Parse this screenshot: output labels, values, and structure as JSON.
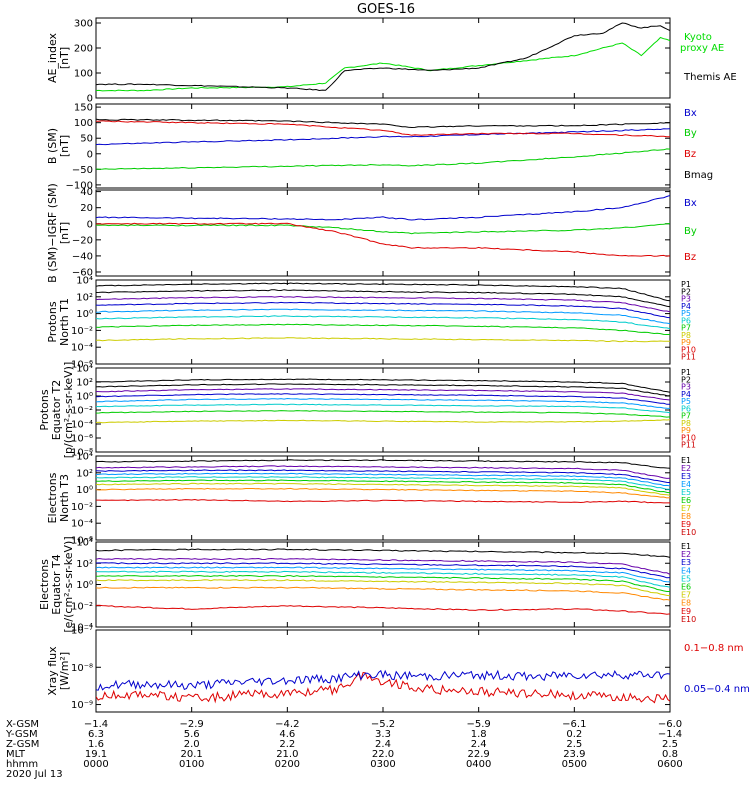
{
  "title": "GOES-16",
  "chart_data": [
    {
      "id": "ae",
      "type": "line",
      "ylabel": [
        "AE_index",
        "[nT]"
      ],
      "ylim": [
        0,
        320
      ],
      "yticks": [
        0,
        100,
        200,
        300
      ],
      "ytick_labels": [
        "0",
        "100",
        "200",
        "300"
      ],
      "yscale": "linear",
      "x": [
        0,
        0.5,
        1,
        1.5,
        2,
        2.4,
        2.6,
        3,
        3.5,
        4,
        4.5,
        5,
        5.3,
        5.5,
        5.7,
        5.9,
        6
      ],
      "series": [
        {
          "name": "Kyoto proxy AE",
          "legend": [
            "Kyoto",
            "proxy AE"
          ],
          "color": "#00dd00",
          "values": [
            30,
            30,
            40,
            42,
            45,
            60,
            120,
            140,
            110,
            130,
            150,
            170,
            200,
            220,
            170,
            240,
            230
          ]
        },
        {
          "name": "Themis AE",
          "legend": [
            "Themis AE"
          ],
          "color": "#000000",
          "values": [
            55,
            55,
            50,
            45,
            40,
            30,
            110,
            120,
            110,
            120,
            160,
            250,
            260,
            300,
            280,
            290,
            270
          ]
        }
      ]
    },
    {
      "id": "bsm",
      "type": "line",
      "ylabel": [
        "B (SM)",
        "[nT]"
      ],
      "ylim": [
        -110,
        160
      ],
      "yticks": [
        -100,
        -50,
        0,
        50,
        100,
        150
      ],
      "ytick_labels": [
        "−100",
        "−50",
        "0",
        "50",
        "100",
        "150"
      ],
      "yscale": "linear",
      "x": [
        0,
        1,
        2,
        3,
        3.3,
        4,
        5,
        6
      ],
      "series": [
        {
          "name": "Bx",
          "color": "#0000cc",
          "values": [
            30,
            38,
            45,
            55,
            55,
            62,
            70,
            80
          ]
        },
        {
          "name": "By",
          "color": "#00cc00",
          "values": [
            -50,
            -45,
            -40,
            -35,
            -38,
            -30,
            -10,
            15
          ]
        },
        {
          "name": "Bz",
          "color": "#dd0000",
          "values": [
            105,
            100,
            95,
            75,
            60,
            65,
            65,
            55
          ]
        },
        {
          "name": "Bmag",
          "color": "#000000",
          "values": [
            110,
            108,
            105,
            95,
            85,
            90,
            90,
            100
          ]
        }
      ]
    },
    {
      "id": "bigrf",
      "type": "line",
      "ylabel": [
        "B (SM)−IGRF (SM)",
        "[nT]"
      ],
      "ylim": [
        -65,
        42
      ],
      "yticks": [
        -60,
        -40,
        -20,
        0,
        20,
        40
      ],
      "ytick_labels": [
        "−60",
        "−40",
        "−20",
        "0",
        "20",
        "40"
      ],
      "yscale": "linear",
      "x": [
        0,
        1,
        2,
        2.5,
        3,
        3.3,
        4,
        5,
        5.5,
        6
      ],
      "series": [
        {
          "name": "Bx",
          "color": "#0000cc",
          "values": [
            8,
            7,
            6,
            5,
            8,
            5,
            8,
            15,
            20,
            35
          ]
        },
        {
          "name": "By",
          "color": "#00cc00",
          "values": [
            -2,
            -2,
            -2,
            -5,
            -10,
            -12,
            -10,
            -8,
            -5,
            0
          ]
        },
        {
          "name": "Bz",
          "color": "#dd0000",
          "values": [
            0,
            0,
            0,
            -10,
            -25,
            -30,
            -30,
            -35,
            -40,
            -40
          ]
        }
      ]
    },
    {
      "id": "p1",
      "type": "line",
      "ylabel": [
        "Protons",
        "North T1"
      ],
      "yscale": "log",
      "ylim_exp": [
        -6,
        4
      ],
      "ytick_exps": [
        -6,
        -4,
        -2,
        0,
        2,
        4
      ],
      "ytick_labels": [
        "10⁻⁶",
        "10⁻⁴",
        "10⁻²",
        "10⁰",
        "10²",
        "10⁴"
      ],
      "x": [
        0,
        1,
        2,
        3,
        4,
        5,
        5.5,
        6
      ],
      "legend_color_band": [
        "#000000",
        "#000000",
        "#6600aa",
        "#0000cc",
        "#0099ff",
        "#00cccc",
        "#00cc00",
        "#cccc00",
        "#ff8800",
        "#dd0000",
        "#cc0000"
      ],
      "series": [
        {
          "name": "P1",
          "color": "#000000",
          "log10_values": [
            3.3,
            3.5,
            3.6,
            3.5,
            3.4,
            3.2,
            3.0,
            1.5
          ]
        },
        {
          "name": "P2",
          "color": "#000000",
          "log10_values": [
            2.5,
            2.7,
            2.8,
            2.6,
            2.5,
            2.3,
            2.0,
            0.8
          ]
        },
        {
          "name": "P3",
          "color": "#6600aa",
          "log10_values": [
            1.7,
            1.9,
            2.0,
            1.9,
            1.8,
            1.6,
            1.3,
            0.2
          ]
        },
        {
          "name": "P4",
          "color": "#0000cc",
          "log10_values": [
            1.0,
            1.2,
            1.3,
            1.2,
            1.1,
            0.9,
            0.6,
            -0.5
          ]
        },
        {
          "name": "P5",
          "color": "#0099ff",
          "log10_values": [
            0.2,
            0.4,
            0.5,
            0.4,
            0.3,
            0.1,
            -0.2,
            -1.2
          ]
        },
        {
          "name": "P6",
          "color": "#00cccc",
          "log10_values": [
            -0.6,
            -0.4,
            -0.3,
            -0.4,
            -0.5,
            -0.7,
            -1.0,
            -1.8
          ]
        },
        {
          "name": "P7",
          "color": "#00cc00",
          "log10_values": [
            -1.6,
            -1.4,
            -1.3,
            -1.4,
            -1.5,
            -1.7,
            -2.0,
            -2.5
          ]
        },
        {
          "name": "P8",
          "color": "#cccc00",
          "log10_values": [
            -3.2,
            -3.0,
            -2.9,
            -3.0,
            -3.1,
            -3.2,
            -3.3,
            -3.3
          ]
        }
      ],
      "legend": [
        "P1",
        "P2",
        "P3",
        "P4",
        "P5",
        "P6",
        "P7",
        "P8",
        "P9",
        "P10",
        "P11"
      ]
    },
    {
      "id": "p2",
      "type": "line",
      "ylabel": [
        "Protons",
        "Equator T2",
        "[p/(cm²-s-sr-keV)]"
      ],
      "yscale": "log",
      "ylim_exp": [
        -8,
        4
      ],
      "ytick_exps": [
        -8,
        -6,
        -4,
        -2,
        0,
        2,
        4
      ],
      "ytick_labels": [
        "10⁻⁸",
        "10⁻⁶",
        "10⁻⁴",
        "10⁻²",
        "10⁰",
        "10²",
        "10⁴"
      ],
      "x": [
        0,
        1,
        2,
        3,
        4,
        5,
        5.5,
        6
      ],
      "legend_color_band": [
        "#000000",
        "#000000",
        "#6600aa",
        "#0000cc",
        "#0099ff",
        "#00cccc",
        "#00cc00",
        "#cccc00",
        "#ff8800",
        "#dd0000",
        "#cc0000"
      ],
      "series": [
        {
          "name": "P1",
          "color": "#000000",
          "log10_values": [
            2.0,
            2.3,
            2.4,
            2.3,
            2.2,
            2.0,
            1.8,
            0.5
          ]
        },
        {
          "name": "P2",
          "color": "#000000",
          "log10_values": [
            1.3,
            1.6,
            1.7,
            1.6,
            1.5,
            1.3,
            1.1,
            0.0
          ]
        },
        {
          "name": "P3",
          "color": "#6600aa",
          "log10_values": [
            0.6,
            0.9,
            1.0,
            0.9,
            0.8,
            0.6,
            0.4,
            -0.6
          ]
        },
        {
          "name": "P4",
          "color": "#0000cc",
          "log10_values": [
            -0.1,
            0.2,
            0.3,
            0.2,
            0.1,
            -0.1,
            -0.3,
            -1.2
          ]
        },
        {
          "name": "P5",
          "color": "#0099ff",
          "log10_values": [
            -0.8,
            -0.5,
            -0.4,
            -0.5,
            -0.6,
            -0.8,
            -1.0,
            -1.8
          ]
        },
        {
          "name": "P6",
          "color": "#00cccc",
          "log10_values": [
            -1.5,
            -1.3,
            -1.2,
            -1.3,
            -1.4,
            -1.5,
            -1.7,
            -2.4
          ]
        },
        {
          "name": "P7",
          "color": "#00cc00",
          "log10_values": [
            -2.4,
            -2.2,
            -2.1,
            -2.2,
            -2.3,
            -2.4,
            -2.6,
            -3.0
          ]
        },
        {
          "name": "P8",
          "color": "#cccc00",
          "log10_values": [
            -3.8,
            -3.6,
            -3.5,
            -3.6,
            -3.7,
            -3.7,
            -3.6,
            -3.4
          ]
        }
      ],
      "legend": [
        "P1",
        "P2",
        "P3",
        "P4",
        "P5",
        "P6",
        "P7",
        "P8",
        "P9",
        "P10",
        "P11"
      ]
    },
    {
      "id": "e3",
      "type": "line",
      "ylabel": [
        "Electrons",
        "North T3"
      ],
      "yscale": "log",
      "ylim_exp": [
        -6,
        4
      ],
      "ytick_exps": [
        -6,
        -4,
        -2,
        0,
        2,
        4
      ],
      "ytick_labels": [
        "10⁻⁶",
        "10⁻⁴",
        "10⁻²",
        "10⁰",
        "10²",
        "10⁴"
      ],
      "x": [
        0,
        1,
        2,
        3,
        4,
        5,
        5.5,
        6
      ],
      "legend_color_band": [
        "#000000",
        "#6600aa",
        "#0000cc",
        "#0099ff",
        "#00cccc",
        "#00cc00",
        "#cccc00",
        "#ff8800",
        "#dd0000",
        "#cc0000"
      ],
      "series": [
        {
          "name": "E1",
          "color": "#000000",
          "log10_values": [
            3.3,
            3.4,
            3.5,
            3.5,
            3.4,
            3.3,
            3.2,
            2.5
          ]
        },
        {
          "name": "E2",
          "color": "#6600aa",
          "log10_values": [
            2.6,
            2.7,
            2.8,
            2.7,
            2.6,
            2.5,
            2.3,
            1.3
          ]
        },
        {
          "name": "E3",
          "color": "#0000cc",
          "log10_values": [
            2.2,
            2.3,
            2.3,
            2.2,
            2.1,
            2.0,
            1.8,
            0.8
          ]
        },
        {
          "name": "E4",
          "color": "#0099ff",
          "log10_values": [
            1.8,
            1.9,
            1.9,
            1.8,
            1.7,
            1.6,
            1.4,
            0.4
          ]
        },
        {
          "name": "E5",
          "color": "#00cccc",
          "log10_values": [
            1.4,
            1.5,
            1.5,
            1.4,
            1.3,
            1.2,
            1.0,
            0.0
          ]
        },
        {
          "name": "E6",
          "color": "#00cc00",
          "log10_values": [
            1.0,
            1.1,
            1.1,
            1.0,
            0.9,
            0.8,
            0.6,
            -0.4
          ]
        },
        {
          "name": "E7",
          "color": "#cccc00",
          "log10_values": [
            0.6,
            0.7,
            0.7,
            0.6,
            0.5,
            0.4,
            0.2,
            -0.7
          ]
        },
        {
          "name": "E8",
          "color": "#ff8800",
          "log10_values": [
            0.0,
            0.1,
            0.1,
            0.0,
            -0.1,
            -0.2,
            -0.4,
            -1.0
          ]
        },
        {
          "name": "E9",
          "color": "#dd0000",
          "log10_values": [
            -1.3,
            -1.2,
            -1.4,
            -1.3,
            -1.4,
            -1.5,
            -1.4,
            -1.6
          ]
        }
      ],
      "legend": [
        "E1",
        "E2",
        "E3",
        "E4",
        "E5",
        "E6",
        "E7",
        "E8",
        "E9",
        "E10"
      ]
    },
    {
      "id": "e4",
      "type": "line",
      "ylabel": [
        "Electrons",
        "Equator T4",
        "[e/(cm²-s-sr-keV)]"
      ],
      "yscale": "log",
      "ylim_exp": [
        -4,
        4
      ],
      "ytick_exps": [
        -4,
        -2,
        0,
        2,
        4
      ],
      "ytick_labels": [
        "10⁻⁴",
        "10⁻²",
        "10⁰",
        "10²",
        "10⁴"
      ],
      "x": [
        0,
        1,
        2,
        3,
        4,
        5,
        5.5,
        6
      ],
      "legend_color_band": [
        "#000000",
        "#6600aa",
        "#0000cc",
        "#0099ff",
        "#00cccc",
        "#00cc00",
        "#cccc00",
        "#ff8800",
        "#dd0000",
        "#cc0000"
      ],
      "series": [
        {
          "name": "E1",
          "color": "#000000",
          "log10_values": [
            3.2,
            3.3,
            3.3,
            3.2,
            3.1,
            3.0,
            2.9,
            2.6
          ]
        },
        {
          "name": "E2",
          "color": "#6600aa",
          "log10_values": [
            2.4,
            2.4,
            2.4,
            2.3,
            2.2,
            2.1,
            1.9,
            1.0
          ]
        },
        {
          "name": "E3",
          "color": "#0000cc",
          "log10_values": [
            2.0,
            2.0,
            2.0,
            1.9,
            1.8,
            1.7,
            1.5,
            0.6
          ]
        },
        {
          "name": "E4",
          "color": "#0099ff",
          "log10_values": [
            1.6,
            1.6,
            1.6,
            1.5,
            1.4,
            1.3,
            1.1,
            0.2
          ]
        },
        {
          "name": "E5",
          "color": "#00cccc",
          "log10_values": [
            1.2,
            1.2,
            1.2,
            1.1,
            1.0,
            0.9,
            0.7,
            -0.3
          ]
        },
        {
          "name": "E6",
          "color": "#00cc00",
          "log10_values": [
            0.8,
            0.8,
            0.8,
            0.7,
            0.6,
            0.5,
            0.3,
            -0.7
          ]
        },
        {
          "name": "E7",
          "color": "#cccc00",
          "log10_values": [
            0.4,
            0.4,
            0.4,
            0.3,
            0.2,
            0.1,
            -0.1,
            -1.1
          ]
        },
        {
          "name": "E8",
          "color": "#ff8800",
          "log10_values": [
            -0.3,
            -0.3,
            -0.3,
            -0.4,
            -0.5,
            -0.6,
            -0.8,
            -1.5
          ]
        },
        {
          "name": "E9",
          "color": "#dd0000",
          "log10_values": [
            -2.0,
            -2.3,
            -2.0,
            -2.2,
            -2.4,
            -2.3,
            -2.5,
            -2.8
          ]
        }
      ],
      "legend": [
        "E1",
        "E2",
        "E3",
        "E4",
        "E5",
        "E6",
        "E7",
        "E8",
        "E9",
        "E10"
      ]
    },
    {
      "id": "xray",
      "type": "line",
      "ylabel": [
        "Xray flux",
        "[W/m²]"
      ],
      "yscale": "log",
      "ylim_exp": [
        -9.2,
        -7
      ],
      "ytick_exps": [
        -9,
        -8,
        -7
      ],
      "ytick_labels": [
        "10⁻⁹",
        "10⁻⁸",
        "10⁻⁷"
      ],
      "x": [
        0,
        0.5,
        1,
        1.5,
        2,
        2.5,
        2.8,
        3,
        3.5,
        4,
        4.5,
        5,
        5.5,
        6
      ],
      "series": [
        {
          "name": "0.1−0.8 nm",
          "color": "#dd0000",
          "log10_values": [
            -8.8,
            -8.7,
            -8.85,
            -8.75,
            -8.7,
            -8.6,
            -8.2,
            -8.4,
            -8.6,
            -8.65,
            -8.7,
            -8.75,
            -8.8,
            -8.85
          ]
        },
        {
          "name": "0.05−0.4 nm",
          "color": "#0000cc",
          "log10_values": [
            -8.5,
            -8.45,
            -8.5,
            -8.4,
            -8.35,
            -8.3,
            -8.2,
            -8.2,
            -8.25,
            -8.2,
            -8.25,
            -8.2,
            -8.2,
            -8.2
          ]
        }
      ]
    }
  ],
  "x_axis": {
    "ephemeris": [
      {
        "label": "X-GSM",
        "values": [
          "−1.4",
          "−2.9",
          "−4.2",
          "−5.2",
          "−5.9",
          "−6.1",
          "−6.0"
        ]
      },
      {
        "label": "Y-GSM",
        "values": [
          "6.3",
          "5.6",
          "4.6",
          "3.3",
          "1.8",
          "0.2",
          "−1.4"
        ]
      },
      {
        "label": "Z-GSM",
        "values": [
          "1.6",
          "2.0",
          "2.2",
          "2.4",
          "2.4",
          "2.5",
          "2.5"
        ]
      },
      {
        "label": "MLT",
        "values": [
          "19.1",
          "20.1",
          "21.0",
          "22.0",
          "22.9",
          "23.9",
          "0.8"
        ]
      },
      {
        "label": "hhmm",
        "values": [
          "0000",
          "0100",
          "0200",
          "0300",
          "0400",
          "0500",
          "0600"
        ]
      }
    ],
    "date": "2020 Jul 13"
  }
}
